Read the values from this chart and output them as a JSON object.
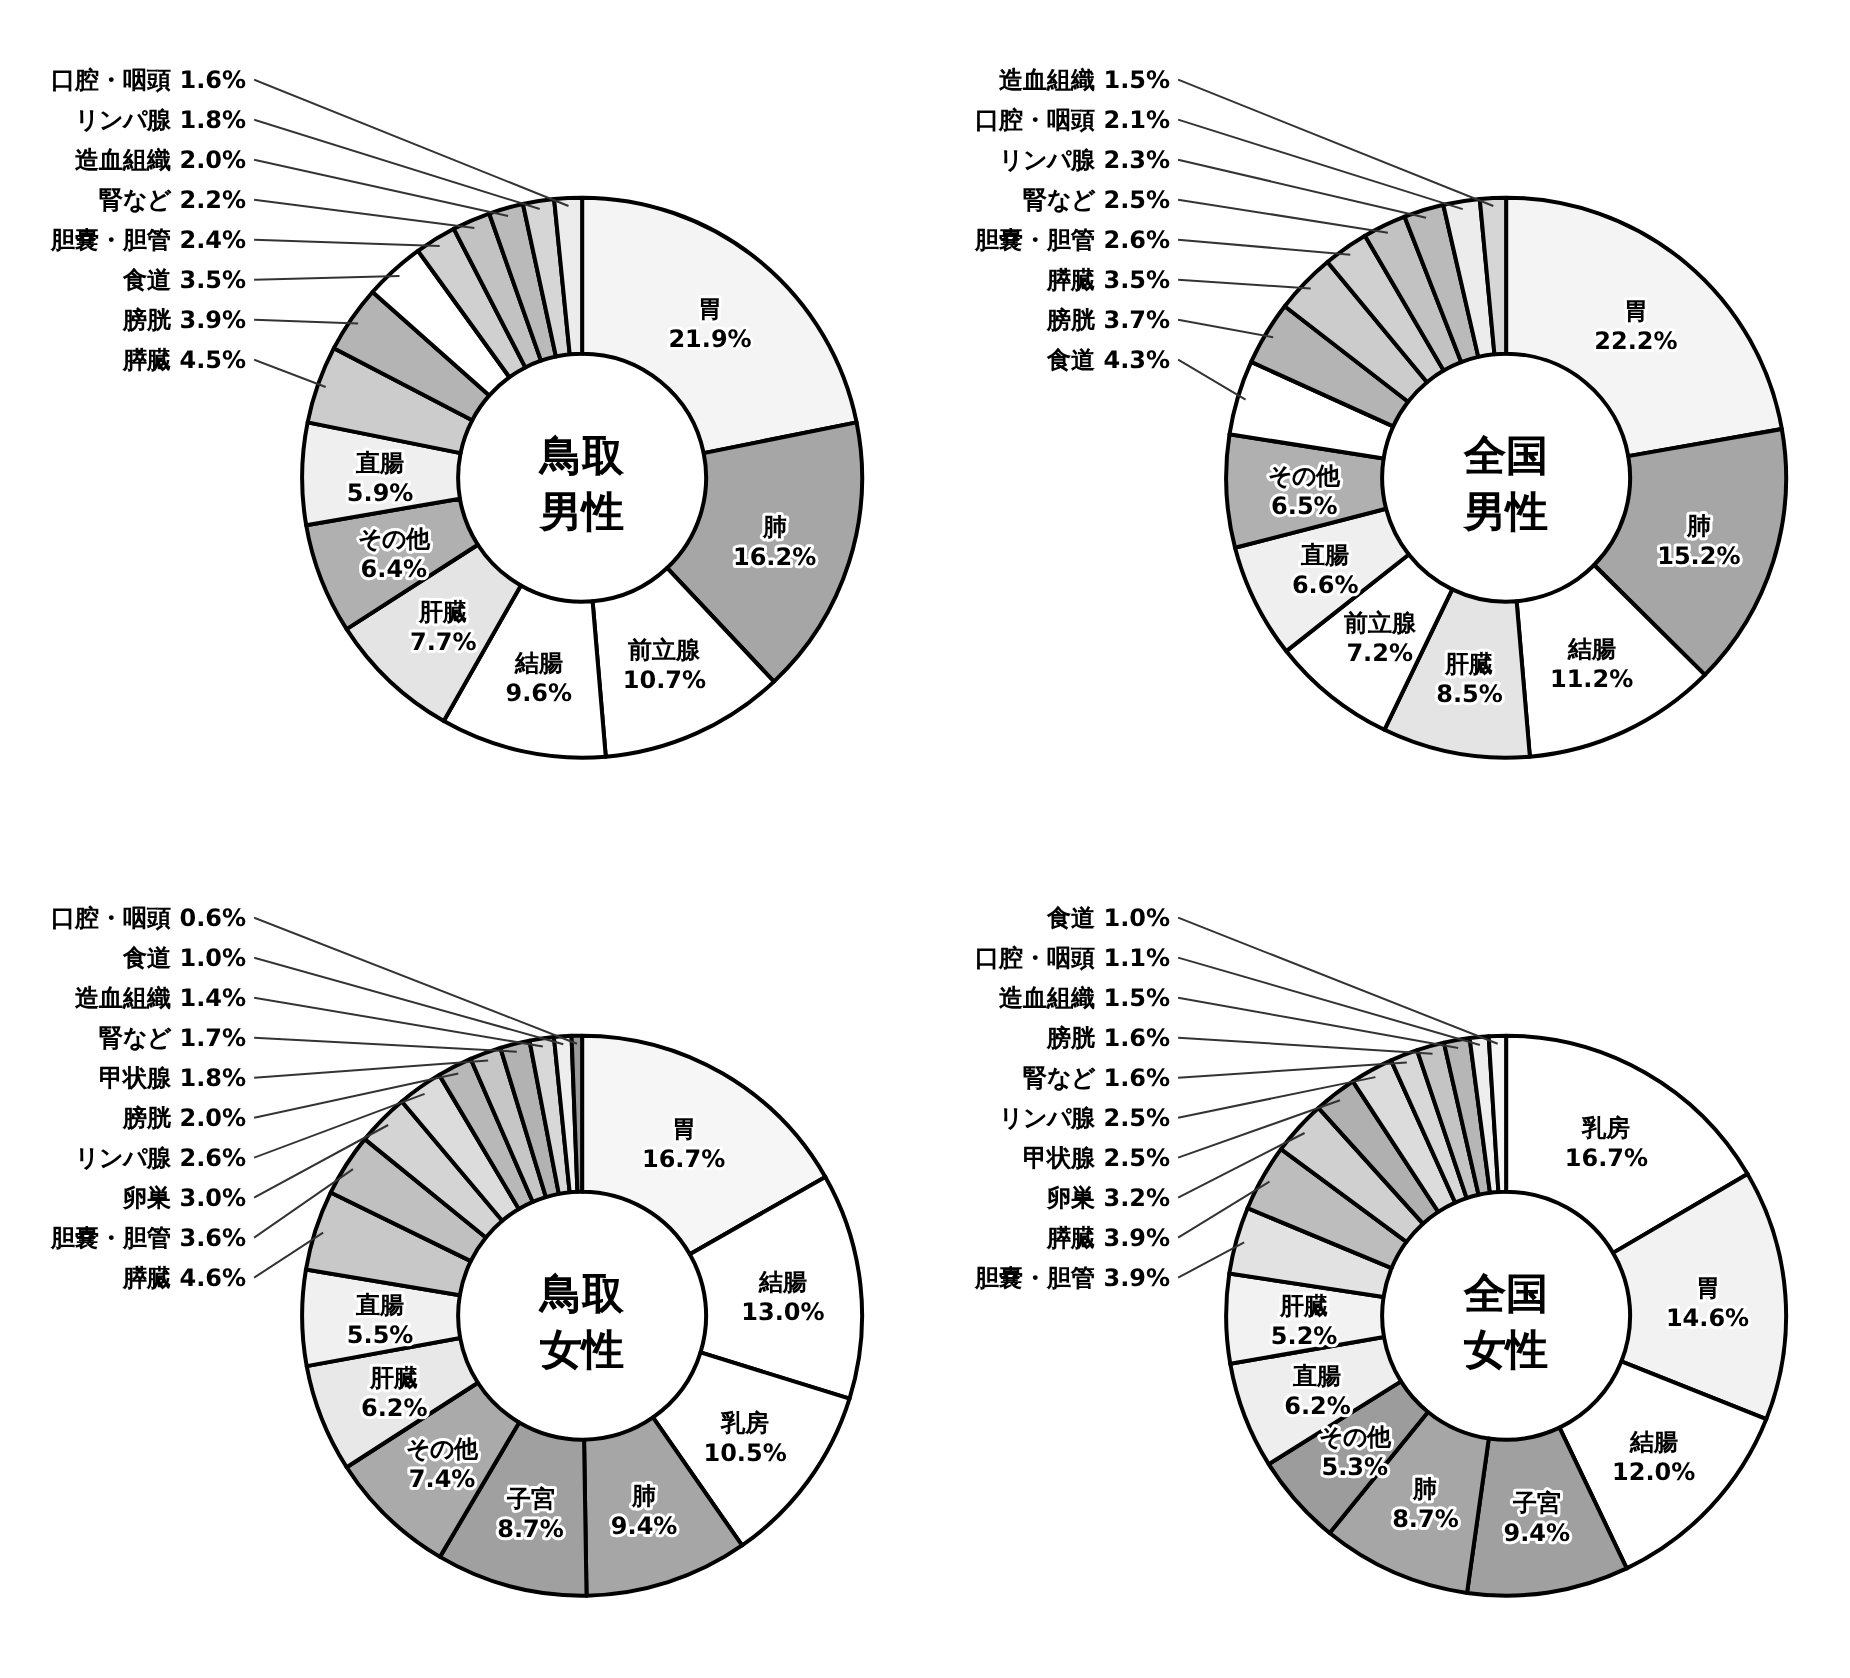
{
  "chart_data": [
    {
      "type": "donut",
      "title": "鳥取",
      "subtitle": "男性",
      "categories": [
        "胃",
        "肺",
        "前立腺",
        "結腸",
        "肝臓",
        "その他",
        "直腸",
        "膵臓",
        "膀胱",
        "食道",
        "胆嚢・胆管",
        "腎など",
        "造血組織",
        "リンパ腺",
        "口腔・咽頭"
      ],
      "values": [
        21.9,
        16.2,
        10.7,
        9.6,
        7.7,
        6.4,
        5.9,
        4.5,
        3.9,
        3.5,
        2.4,
        2.2,
        2.0,
        1.8,
        1.6
      ],
      "value_labels": [
        "21.9%",
        "16.2%",
        "10.7%",
        "9.6%",
        "7.7%",
        "6.4%",
        "5.9%",
        "4.5%",
        "3.9%",
        "3.5%",
        "2.4%",
        "2.2%",
        "2.0%",
        "1.8%",
        "1.6%"
      ],
      "colors": [
        "#f4f4f4",
        "#a6a6a6",
        "#ffffff",
        "#ffffff",
        "#e4e4e4",
        "#b0b0b0",
        "#efefef",
        "#cccccc",
        "#b4b4b4",
        "#ffffff",
        "#d0d0d0",
        "#c2c2c2",
        "#bababa",
        "#d6d6d6",
        "#ececec"
      ]
    },
    {
      "type": "donut",
      "title": "全国",
      "subtitle": "男性",
      "categories": [
        "胃",
        "肺",
        "結腸",
        "肝臓",
        "前立腺",
        "直腸",
        "その他",
        "食道",
        "膀胱",
        "膵臓",
        "胆嚢・胆管",
        "腎など",
        "リンパ腺",
        "口腔・咽頭",
        "造血組織"
      ],
      "values": [
        22.2,
        15.2,
        11.2,
        8.5,
        7.2,
        6.6,
        6.5,
        4.3,
        3.7,
        3.5,
        2.6,
        2.5,
        2.3,
        2.1,
        1.5
      ],
      "value_labels": [
        "22.2%",
        "15.2%",
        "11.2%",
        "8.5%",
        "7.2%",
        "6.6%",
        "6.5%",
        "4.3%",
        "3.7%",
        "3.5%",
        "2.6%",
        "2.5%",
        "2.3%",
        "2.1%",
        "1.5%"
      ],
      "colors": [
        "#f4f4f4",
        "#a6a6a6",
        "#ffffff",
        "#e4e4e4",
        "#ffffff",
        "#efefef",
        "#b0b0b0",
        "#ffffff",
        "#b4b4b4",
        "#cccccc",
        "#d0d0d0",
        "#c2c2c2",
        "#bababa",
        "#ececec",
        "#d6d6d6"
      ]
    },
    {
      "type": "donut",
      "title": "鳥取",
      "subtitle": "女性",
      "categories": [
        "胃",
        "結腸",
        "乳房",
        "肺",
        "子宮",
        "その他",
        "肝臓",
        "直腸",
        "膵臓",
        "胆嚢・胆管",
        "卵巣",
        "リンパ腺",
        "膀胱",
        "甲状腺",
        "腎など",
        "造血組織",
        "食道",
        "口腔・咽頭"
      ],
      "values": [
        16.7,
        13.0,
        10.5,
        9.4,
        8.7,
        7.4,
        6.2,
        5.5,
        4.6,
        3.6,
        3.0,
        2.6,
        2.0,
        1.8,
        1.7,
        1.4,
        1.0,
        0.6
      ],
      "value_labels": [
        "16.7%",
        "13.0%",
        "10.5%",
        "9.4%",
        "8.7%",
        "7.4%",
        "6.2%",
        "5.5%",
        "4.6%",
        "3.6%",
        "3.0%",
        "2.6%",
        "2.0%",
        "1.8%",
        "1.7%",
        "1.4%",
        "1.0%",
        "0.6%"
      ],
      "colors": [
        "#f6f6f6",
        "#ffffff",
        "#ffffff",
        "#a6a6a6",
        "#a0a0a0",
        "#aaaaaa",
        "#e8e8e8",
        "#f0f0f0",
        "#c8c8c8",
        "#c0c0c0",
        "#d4d4d4",
        "#dcdcdc",
        "#b8b8b8",
        "#c6c6c6",
        "#b2b2b2",
        "#d8d8d8",
        "#eeeeee",
        "#999999"
      ]
    },
    {
      "type": "donut",
      "title": "全国",
      "subtitle": "女性",
      "categories": [
        "乳房",
        "胃",
        "結腸",
        "子宮",
        "肺",
        "その他",
        "直腸",
        "肝臓",
        "胆嚢・胆管",
        "膵臓",
        "卵巣",
        "甲状腺",
        "リンパ腺",
        "腎など",
        "膀胱",
        "造血組織",
        "口腔・咽頭",
        "食道"
      ],
      "values": [
        16.7,
        14.6,
        12.0,
        9.4,
        8.7,
        5.3,
        6.2,
        5.2,
        3.9,
        3.9,
        3.2,
        2.5,
        2.5,
        1.6,
        1.6,
        1.5,
        1.1,
        1.0
      ],
      "value_labels": [
        "16.7%",
        "14.6%",
        "12.0%",
        "9.4%",
        "8.7%",
        "5.3%",
        "6.2%",
        "5.2%",
        "3.9%",
        "3.9%",
        "3.2%",
        "2.5%",
        "2.5%",
        "1.6%",
        "1.6%",
        "1.5%",
        "1.1%",
        "1.0%"
      ],
      "colors": [
        "#ffffff",
        "#f2f2f2",
        "#ffffff",
        "#a0a0a0",
        "#a6a6a6",
        "#9c9c9c",
        "#eeeeee",
        "#f2f2f2",
        "#e2e2e2",
        "#bdbdbd",
        "#d0d0d0",
        "#b0b0b0",
        "#dcdcdc",
        "#d8d8d8",
        "#c4c4c4",
        "#b6b6b6",
        "#eeeeee",
        "#f6f6f6"
      ]
    }
  ]
}
